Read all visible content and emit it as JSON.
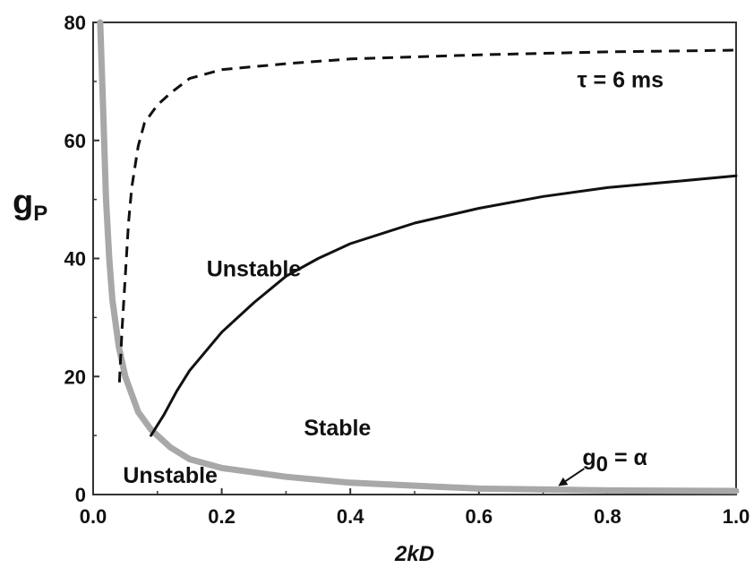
{
  "chart_data": {
    "type": "line",
    "title": "",
    "xlabel": "2kD",
    "ylabel": "g",
    "ylabel_subscript": "P",
    "xlim": [
      0,
      1
    ],
    "ylim": [
      0,
      80
    ],
    "grid": false,
    "x_ticks": [
      0.0,
      0.2,
      0.4,
      0.6,
      0.8,
      1.0
    ],
    "x_tick_labels": [
      "0.0",
      "0.2",
      "0.4",
      "0.6",
      "0.8",
      "1.0"
    ],
    "y_ticks": [
      0,
      20,
      40,
      60,
      80
    ],
    "y_tick_labels": [
      "0",
      "20",
      "40",
      "60",
      "80"
    ],
    "series": [
      {
        "style": "dashed",
        "color": "#111111",
        "x": [
          0.041,
          0.045,
          0.05,
          0.055,
          0.06,
          0.07,
          0.08,
          0.1,
          0.12,
          0.15,
          0.2,
          0.3,
          0.4,
          0.6,
          0.8,
          1.0
        ],
        "y": [
          19,
          28,
          37,
          46,
          52,
          59,
          63,
          66,
          68,
          70.5,
          72,
          73,
          73.8,
          74.5,
          75,
          75.3
        ]
      },
      {
        "style": "solid",
        "color": "#111111",
        "x": [
          0.09,
          0.11,
          0.13,
          0.15,
          0.2,
          0.25,
          0.3,
          0.35,
          0.4,
          0.5,
          0.6,
          0.7,
          0.8,
          0.9,
          1.0
        ],
        "y": [
          10,
          13.5,
          17.5,
          21,
          27.5,
          32.5,
          37,
          40,
          42.5,
          46,
          48.5,
          50.5,
          52,
          53,
          54
        ]
      },
      {
        "style": "solid",
        "color": "#a8a8a8",
        "x": [
          0.011,
          0.015,
          0.02,
          0.025,
          0.03,
          0.04,
          0.05,
          0.07,
          0.09,
          0.12,
          0.15,
          0.2,
          0.3,
          0.4,
          0.5,
          0.6,
          0.8,
          1.0
        ],
        "y": [
          80,
          67,
          50,
          40,
          33,
          25,
          20,
          14,
          11,
          8,
          6,
          4.5,
          3,
          2,
          1.5,
          1,
          0.7,
          0.6
        ]
      }
    ],
    "annotations": [
      {
        "text": "τ = 6 ms",
        "x": 0.82,
        "y": 69
      },
      {
        "text": "Unstable",
        "x": 0.25,
        "y": 37
      },
      {
        "text": "Stable",
        "x": 0.38,
        "y": 10
      },
      {
        "text": "Unstable",
        "x": 0.12,
        "y": 2
      }
    ],
    "arrow_annotation": {
      "text": "g",
      "subscript": "0",
      "suffix": " = α",
      "text_x": 0.8,
      "text_y": 5,
      "point_x": 0.72,
      "point_y": 1
    }
  }
}
